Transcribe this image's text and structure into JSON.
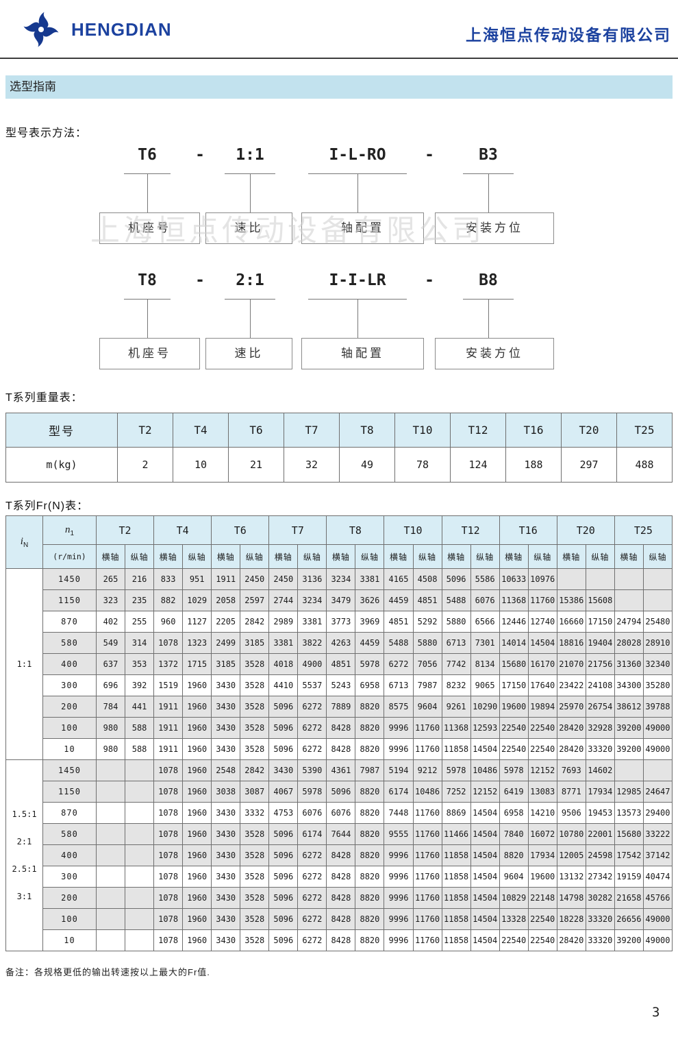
{
  "colors": {
    "brand_blue": "#1c429f",
    "banner_bg": "#c2e2ee",
    "table_header_bg": "#d8edf5",
    "row_shade": "#e4e4e4"
  },
  "header": {
    "logo_text": "HENGDIAN",
    "company": "上海恒点传动设备有限公司"
  },
  "banner": {
    "title": "选型指南"
  },
  "model_section": {
    "heading": "型号表示方法：",
    "watermark": "上海恒点传动设备有限公司",
    "diagrams": [
      {
        "codes": [
          "T6",
          "1:1",
          "I-L-RO",
          "B3"
        ],
        "dashes": [
          "-",
          "-"
        ],
        "boxes": [
          "机座号",
          "速比",
          "轴配置",
          "安装方位"
        ]
      },
      {
        "codes": [
          "T8",
          "2:1",
          "I-I-LR",
          "B8"
        ],
        "dashes": [
          "-",
          "-"
        ],
        "boxes": [
          "机座号",
          "速比",
          "轴配置",
          "安装方位"
        ]
      }
    ]
  },
  "weight_table": {
    "title": "T系列重量表：",
    "header_label": "型号",
    "models": [
      "T2",
      "T4",
      "T6",
      "T7",
      "T8",
      "T10",
      "T12",
      "T16",
      "T20",
      "T25"
    ],
    "row_label": "m(kg)",
    "values": [
      "2",
      "10",
      "21",
      "32",
      "49",
      "78",
      "124",
      "188",
      "297",
      "488"
    ]
  },
  "fr_table": {
    "title": "T系列Fr(N)表：",
    "col_in": {
      "main": "i",
      "sub": "N"
    },
    "col_n1": {
      "main": "n",
      "sub": "1",
      "unit": "(r/min)"
    },
    "models": [
      "T2",
      "T4",
      "T6",
      "T7",
      "T8",
      "T10",
      "T12",
      "T16",
      "T20",
      "T25"
    ],
    "axis_labels": [
      "横轴",
      "纵轴"
    ],
    "groups": [
      {
        "ratio_labels": [
          "1:1"
        ],
        "rows": [
          {
            "n1": "1450",
            "v": [
              "265",
              "216",
              "833",
              "951",
              "1911",
              "2450",
              "2450",
              "3136",
              "3234",
              "3381",
              "4165",
              "4508",
              "5096",
              "5586",
              "10633",
              "10976",
              "",
              "",
              "",
              ""
            ]
          },
          {
            "n1": "1150",
            "v": [
              "323",
              "235",
              "882",
              "1029",
              "2058",
              "2597",
              "2744",
              "3234",
              "3479",
              "3626",
              "4459",
              "4851",
              "5488",
              "6076",
              "11368",
              "11760",
              "15386",
              "15608",
              "",
              ""
            ]
          },
          {
            "n1": "870",
            "v": [
              "402",
              "255",
              "960",
              "1127",
              "2205",
              "2842",
              "2989",
              "3381",
              "3773",
              "3969",
              "4851",
              "5292",
              "5880",
              "6566",
              "12446",
              "12740",
              "16660",
              "17150",
              "24794",
              "25480"
            ]
          },
          {
            "n1": "580",
            "v": [
              "549",
              "314",
              "1078",
              "1323",
              "2499",
              "3185",
              "3381",
              "3822",
              "4263",
              "4459",
              "5488",
              "5880",
              "6713",
              "7301",
              "14014",
              "14504",
              "18816",
              "19404",
              "28028",
              "28910"
            ]
          },
          {
            "n1": "400",
            "v": [
              "637",
              "353",
              "1372",
              "1715",
              "3185",
              "3528",
              "4018",
              "4900",
              "4851",
              "5978",
              "6272",
              "7056",
              "7742",
              "8134",
              "15680",
              "16170",
              "21070",
              "21756",
              "31360",
              "32340"
            ]
          },
          {
            "n1": "300",
            "v": [
              "696",
              "392",
              "1519",
              "1960",
              "3430",
              "3528",
              "4410",
              "5537",
              "5243",
              "6958",
              "6713",
              "7987",
              "8232",
              "9065",
              "17150",
              "17640",
              "23422",
              "24108",
              "34300",
              "35280"
            ]
          },
          {
            "n1": "200",
            "v": [
              "784",
              "441",
              "1911",
              "1960",
              "3430",
              "3528",
              "5096",
              "6272",
              "7889",
              "8820",
              "8575",
              "9604",
              "9261",
              "10290",
              "19600",
              "19894",
              "25970",
              "26754",
              "38612",
              "39788"
            ]
          },
          {
            "n1": "100",
            "v": [
              "980",
              "588",
              "1911",
              "1960",
              "3430",
              "3528",
              "5096",
              "6272",
              "8428",
              "8820",
              "9996",
              "11760",
              "11368",
              "12593",
              "22540",
              "22540",
              "28420",
              "32928",
              "39200",
              "49000"
            ]
          },
          {
            "n1": "10",
            "v": [
              "980",
              "588",
              "1911",
              "1960",
              "3430",
              "3528",
              "5096",
              "6272",
              "8428",
              "8820",
              "9996",
              "11760",
              "11858",
              "14504",
              "22540",
              "22540",
              "28420",
              "33320",
              "39200",
              "49000"
            ]
          }
        ]
      },
      {
        "ratio_labels": [
          "1.5:1",
          "2:1",
          "2.5:1",
          "3:1"
        ],
        "rows": [
          {
            "n1": "1450",
            "v": [
              "",
              "",
              "1078",
              "1960",
              "2548",
              "2842",
              "3430",
              "5390",
              "4361",
              "7987",
              "5194",
              "9212",
              "5978",
              "10486",
              "5978",
              "12152",
              "7693",
              "14602",
              "",
              ""
            ]
          },
          {
            "n1": "1150",
            "v": [
              "",
              "",
              "1078",
              "1960",
              "3038",
              "3087",
              "4067",
              "5978",
              "5096",
              "8820",
              "6174",
              "10486",
              "7252",
              "12152",
              "6419",
              "13083",
              "8771",
              "17934",
              "12985",
              "24647"
            ]
          },
          {
            "n1": "870",
            "v": [
              "",
              "",
              "1078",
              "1960",
              "3430",
              "3332",
              "4753",
              "6076",
              "6076",
              "8820",
              "7448",
              "11760",
              "8869",
              "14504",
              "6958",
              "14210",
              "9506",
              "19453",
              "13573",
              "29400"
            ]
          },
          {
            "n1": "580",
            "v": [
              "",
              "",
              "1078",
              "1960",
              "3430",
              "3528",
              "5096",
              "6174",
              "7644",
              "8820",
              "9555",
              "11760",
              "11466",
              "14504",
              "7840",
              "16072",
              "10780",
              "22001",
              "15680",
              "33222"
            ]
          },
          {
            "n1": "400",
            "v": [
              "",
              "",
              "1078",
              "1960",
              "3430",
              "3528",
              "5096",
              "6272",
              "8428",
              "8820",
              "9996",
              "11760",
              "11858",
              "14504",
              "8820",
              "17934",
              "12005",
              "24598",
              "17542",
              "37142"
            ]
          },
          {
            "n1": "300",
            "v": [
              "",
              "",
              "1078",
              "1960",
              "3430",
              "3528",
              "5096",
              "6272",
              "8428",
              "8820",
              "9996",
              "11760",
              "11858",
              "14504",
              "9604",
              "19600",
              "13132",
              "27342",
              "19159",
              "40474"
            ]
          },
          {
            "n1": "200",
            "v": [
              "",
              "",
              "1078",
              "1960",
              "3430",
              "3528",
              "5096",
              "6272",
              "8428",
              "8820",
              "9996",
              "11760",
              "11858",
              "14504",
              "10829",
              "22148",
              "14798",
              "30282",
              "21658",
              "45766"
            ]
          },
          {
            "n1": "100",
            "v": [
              "",
              "",
              "1078",
              "1960",
              "3430",
              "3528",
              "5096",
              "6272",
              "8428",
              "8820",
              "9996",
              "11760",
              "11858",
              "14504",
              "13328",
              "22540",
              "18228",
              "33320",
              "26656",
              "49000"
            ]
          },
          {
            "n1": "10",
            "v": [
              "",
              "",
              "1078",
              "1960",
              "3430",
              "3528",
              "5096",
              "6272",
              "8428",
              "8820",
              "9996",
              "11760",
              "11858",
              "14504",
              "22540",
              "22540",
              "28420",
              "33320",
              "39200",
              "49000"
            ]
          }
        ]
      }
    ]
  },
  "note": "备注：各规格更低的输出转速按以上最大的Fr值.",
  "page": {
    "number": "3"
  }
}
